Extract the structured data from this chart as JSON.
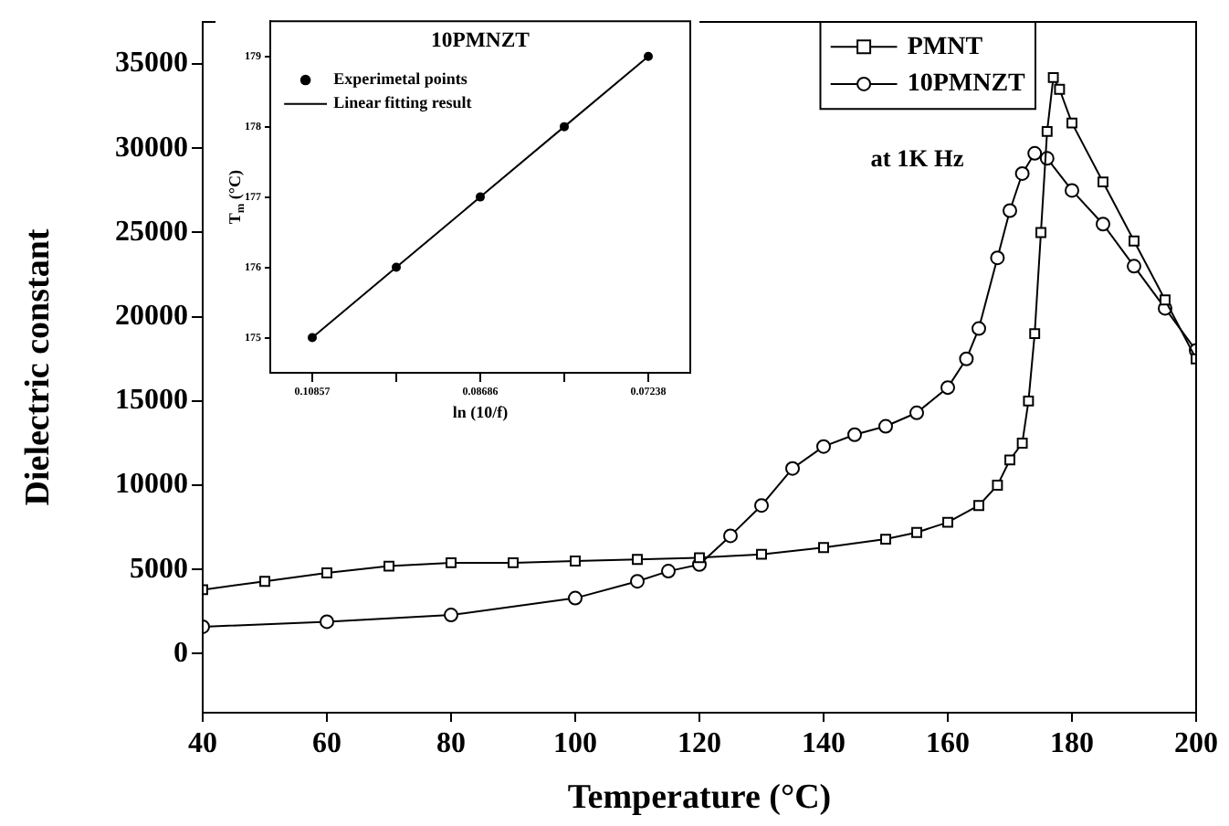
{
  "chart_data": [
    {
      "type": "line",
      "xlabel": "Temperature (°C)",
      "ylabel": "Dielectric constant",
      "legend": "top right",
      "annotations": [
        "at 1K Hz"
      ],
      "xlim": [
        40,
        200
      ],
      "ylim": [
        -3500,
        37500
      ],
      "xticks": [
        40,
        60,
        80,
        100,
        120,
        140,
        160,
        180,
        200
      ],
      "yticks": [
        0,
        5000,
        10000,
        15000,
        20000,
        25000,
        30000,
        35000
      ],
      "series": [
        {
          "name": "PMNT",
          "color": "#000000",
          "marker": "square",
          "x": [
            40,
            50,
            60,
            70,
            80,
            90,
            100,
            110,
            120,
            130,
            140,
            150,
            155,
            160,
            165,
            168,
            170,
            172,
            173,
            174,
            175,
            176,
            177,
            178,
            180,
            185,
            190,
            195,
            200
          ],
          "values": [
            3800,
            4300,
            4800,
            5200,
            5400,
            5400,
            5500,
            5600,
            5700,
            5900,
            6300,
            6800,
            7200,
            7800,
            8800,
            10000,
            11500,
            12500,
            15000,
            19000,
            25000,
            31000,
            34200,
            33500,
            31500,
            28000,
            24500,
            21000,
            17500
          ]
        },
        {
          "name": "10PMNZT",
          "color": "#000000",
          "marker": "circle",
          "x": [
            40,
            60,
            80,
            100,
            110,
            115,
            120,
            125,
            130,
            135,
            140,
            145,
            150,
            155,
            160,
            163,
            165,
            168,
            170,
            172,
            174,
            176,
            180,
            185,
            190,
            195,
            200
          ],
          "values": [
            1600,
            1900,
            2300,
            3300,
            4300,
            4900,
            5300,
            7000,
            8800,
            11000,
            12300,
            13000,
            13500,
            14300,
            15800,
            17500,
            19300,
            23500,
            26300,
            28500,
            29700,
            29400,
            27500,
            25500,
            23000,
            20500,
            18000
          ]
        }
      ]
    },
    {
      "type": "line",
      "title": "10PMNZT",
      "xlabel": "ln (10/f)",
      "ylabel": "T$_{m}$ (°C)",
      "legend": "top left",
      "categories": [
        "0.10857",
        null,
        "0.08686",
        null,
        "0.07238"
      ],
      "ylim": [
        174.5,
        179.5
      ],
      "yticks": [
        175,
        176,
        177,
        178,
        179
      ],
      "series": [
        {
          "name": "Experimetal points",
          "type": "scatter",
          "color": "#000000",
          "marker": "circle",
          "values": [
            175,
            176,
            177,
            178,
            179
          ]
        },
        {
          "name": "Linear fitting result",
          "type": "line",
          "color": "#000000",
          "marker": "none",
          "values": [
            175,
            176,
            177,
            178,
            179
          ]
        }
      ]
    }
  ]
}
